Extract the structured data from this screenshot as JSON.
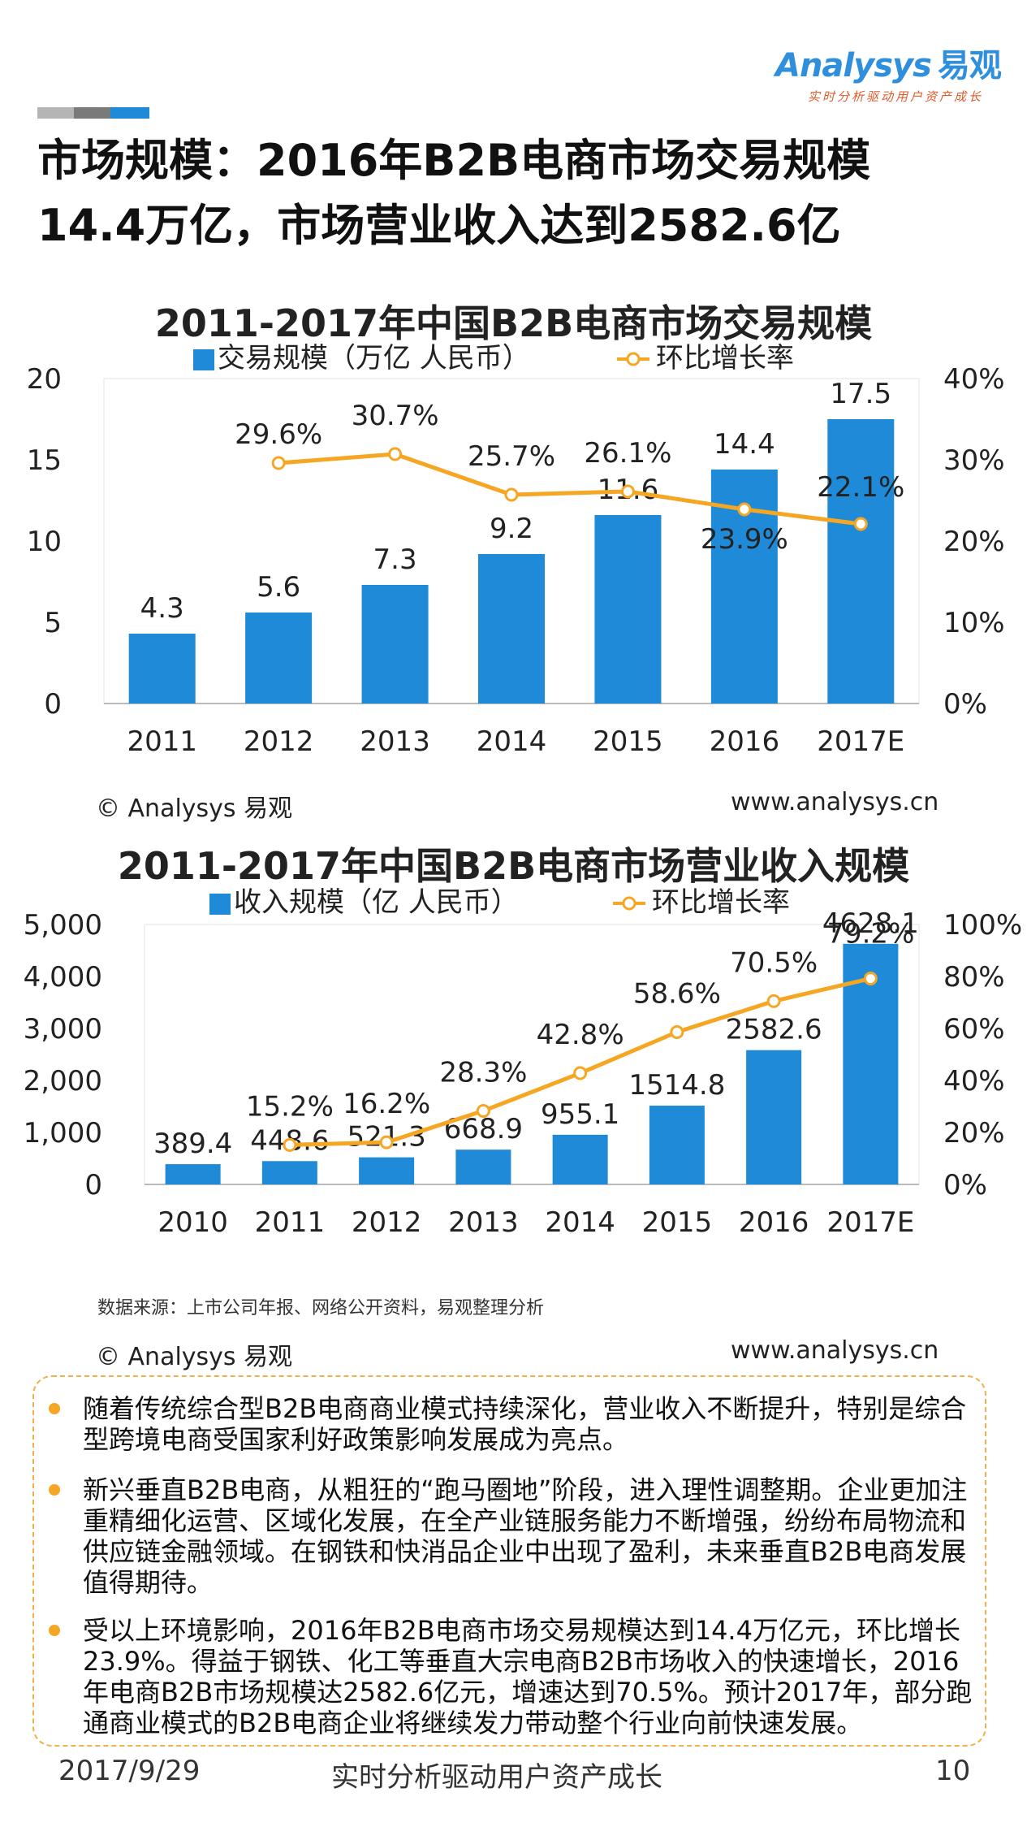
{
  "brand": {
    "logo_word": "Analysys",
    "logo_cn": "易观",
    "tagline": "实时分析驱动用户资产成长"
  },
  "headline": {
    "line1": "市场规模：2016年B2B电商市场交易规模",
    "line2": "14.4万亿，市场营业收入达到2582.6亿"
  },
  "colors": {
    "bar": "#1f8ad8",
    "line": "#f5a623",
    "accent": "#2f8fdc"
  },
  "chart_data": [
    {
      "type": "bar",
      "title": "2011-2017年中国B2B电商市场交易规模",
      "categories": [
        "2011",
        "2012",
        "2013",
        "2014",
        "2015",
        "2016",
        "2017E"
      ],
      "series": [
        {
          "name": "交易规模（万亿 人民币）",
          "type": "bar",
          "axis": "left",
          "values": [
            4.3,
            5.6,
            7.3,
            9.2,
            11.6,
            14.4,
            17.5
          ],
          "labels": [
            "4.3",
            "5.6",
            "7.3",
            "9.2",
            "11.6",
            "14.4",
            "17.5"
          ]
        },
        {
          "name": "环比增长率",
          "type": "line",
          "axis": "right",
          "values": [
            null,
            29.6,
            30.7,
            25.7,
            26.1,
            23.9,
            22.1
          ],
          "labels": [
            null,
            "29.6%",
            "30.7%",
            "25.7%",
            "26.1%",
            "23.9%",
            "22.1%"
          ]
        }
      ],
      "ylim": [
        0,
        20
      ],
      "y_ticks": [
        "0",
        "5",
        "10",
        "15",
        "20"
      ],
      "y2lim": [
        0,
        40
      ],
      "y2_ticks": [
        "0%",
        "10%",
        "20%",
        "30%",
        "40%"
      ],
      "copyright": "© Analysys 易观",
      "website": "www.analysys.cn"
    },
    {
      "type": "bar",
      "title": "2011-2017年中国B2B电商市场营业收入规模",
      "categories": [
        "2010",
        "2011",
        "2012",
        "2013",
        "2014",
        "2015",
        "2016",
        "2017E"
      ],
      "series": [
        {
          "name": "收入规模（亿 人民币）",
          "type": "bar",
          "axis": "left",
          "values": [
            389.4,
            448.6,
            521.3,
            668.9,
            955.1,
            1514.8,
            2582.6,
            4628.1
          ],
          "labels": [
            "389.4",
            "448.6",
            "521.3",
            "668.9",
            "955.1",
            "1514.8",
            "2582.6",
            "4628.1"
          ]
        },
        {
          "name": "环比增长率",
          "type": "line",
          "axis": "right",
          "values": [
            null,
            15.2,
            16.2,
            28.3,
            42.8,
            58.6,
            70.5,
            79.2
          ],
          "labels": [
            null,
            "15.2%",
            "16.2%",
            "28.3%",
            "42.8%",
            "58.6%",
            "70.5%",
            "79.2%"
          ]
        }
      ],
      "ylim": [
        0,
        5000
      ],
      "y_ticks": [
        "0",
        "1,000",
        "2,000",
        "3,000",
        "4,000",
        "5,000"
      ],
      "y2lim": [
        0,
        100
      ],
      "y2_ticks": [
        "0%",
        "20%",
        "40%",
        "60%",
        "80%",
        "100%"
      ],
      "source": "数据来源：上市公司年报、网络公开资料，易观整理分析",
      "copyright": "© Analysys 易观",
      "website": "www.analysys.cn"
    }
  ],
  "bullets": [
    "随着传统综合型B2B电商商业模式持续深化，营业收入不断提升，特别是综合型跨境电商受国家利好政策影响发展成为亮点。",
    "新兴垂直B2B电商，从粗狂的“跑马圈地”阶段，进入理性调整期。企业更加注重精细化运营、区域化发展，在全产业链服务能力不断增强，纷纷布局物流和供应链金融领域。在钢铁和快消品企业中出现了盈利，未来垂直B2B电商发展值得期待。",
    "受以上环境影响，2016年B2B电商市场交易规模达到14.4万亿元，环比增长23.9%。得益于钢铁、化工等垂直大宗电商B2B市场收入的快速增长，2016年电商B2B市场规模达2582.6亿元，增速达到70.5%。预计2017年，部分跑通商业模式的B2B电商企业将继续发力带动整个行业向前快速发展。"
  ],
  "footer": {
    "date": "2017/9/29",
    "slogan": "实时分析驱动用户资产成长",
    "page": "10"
  }
}
